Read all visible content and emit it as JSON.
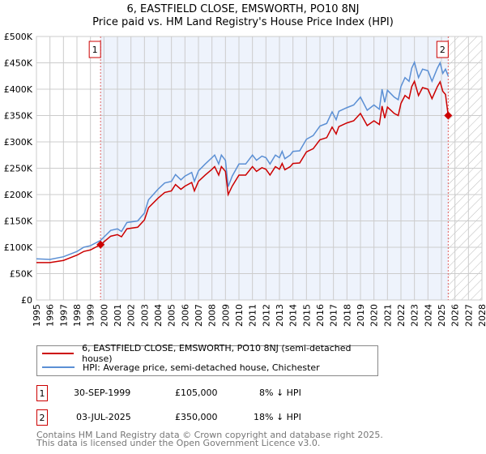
{
  "chart_data": {
    "type": "line",
    "title": "6, EASTFIELD CLOSE, EMSWORTH, PO10 8NJ",
    "subtitle": "Price paid vs. HM Land Registry's House Price Index (HPI)",
    "xlim": [
      1995,
      2028
    ],
    "ylim": [
      0,
      500000
    ],
    "yticks": [
      0,
      50000,
      100000,
      150000,
      200000,
      250000,
      300000,
      350000,
      400000,
      450000,
      500000
    ],
    "ytick_labels": [
      "£0",
      "£50K",
      "£100K",
      "£150K",
      "£200K",
      "£250K",
      "£300K",
      "£350K",
      "£400K",
      "£450K",
      "£500K"
    ],
    "xtick_labels": [
      "1995",
      "1996",
      "1997",
      "1998",
      "1999",
      "2000",
      "2001",
      "2002",
      "2003",
      "2004",
      "2005",
      "2006",
      "2007",
      "2008",
      "2009",
      "2010",
      "2011",
      "2012",
      "2013",
      "2014",
      "2015",
      "2016",
      "2017",
      "2018",
      "2019",
      "2020",
      "2021",
      "2022",
      "2023",
      "2024",
      "2025",
      "2026",
      "2027",
      "2028"
    ],
    "grid": true,
    "colors": {
      "property": "#cc0000",
      "hpi": "#5b8fd4",
      "shade": "#eef3fc"
    },
    "x": [
      1995,
      1996,
      1997,
      1998,
      1998.5,
      1999,
      1999.75,
      2000.5,
      2001,
      2001.3,
      2001.7,
      2002.5,
      2003,
      2003.3,
      2004,
      2004.5,
      2005,
      2005.3,
      2005.7,
      2006,
      2006.5,
      2006.7,
      2007,
      2007.5,
      2008,
      2008.2,
      2008.5,
      2008.7,
      2009,
      2009.2,
      2009.5,
      2010,
      2010.5,
      2011,
      2011.3,
      2011.7,
      2012,
      2012.3,
      2012.7,
      2013,
      2013.2,
      2013.4,
      2013.8,
      2014,
      2014.5,
      2015,
      2015.5,
      2016,
      2016.5,
      2016.9,
      2017.2,
      2017.4,
      2018,
      2018.5,
      2019,
      2019.5,
      2020,
      2020.4,
      2020.6,
      2020.8,
      2021,
      2021.5,
      2021.8,
      2022,
      2022.3,
      2022.6,
      2022.8,
      2023,
      2023.3,
      2023.6,
      2024,
      2024.3,
      2024.7,
      2024.9,
      2025.1,
      2025.3,
      2025.5
    ],
    "series": [
      {
        "name": "6, EASTFIELD CLOSE, EMSWORTH, PO10 8NJ (semi-detached house)",
        "values": [
          71000,
          71000,
          75000,
          85000,
          92000,
          95000,
          105000,
          121000,
          124000,
          120000,
          135000,
          138000,
          152000,
          175000,
          193000,
          204000,
          207000,
          219000,
          210000,
          216000,
          223000,
          207000,
          225000,
          237000,
          248000,
          253000,
          237000,
          253000,
          244000,
          200000,
          216000,
          237000,
          237000,
          253000,
          244000,
          251000,
          248000,
          237000,
          253000,
          248000,
          259000,
          247000,
          253000,
          259000,
          260000,
          281000,
          287000,
          304000,
          308000,
          328000,
          315000,
          329000,
          336000,
          340000,
          354000,
          331000,
          340000,
          333000,
          368000,
          345000,
          366000,
          354000,
          350000,
          373000,
          388000,
          382000,
          405000,
          415000,
          388000,
          403000,
          400000,
          382000,
          405000,
          414000,
          396000,
          390000,
          350000
        ]
      },
      {
        "name": "HPI: Average price, semi-detached house, Chichester",
        "values": [
          78000,
          77000,
          82000,
          92000,
          100000,
          103000,
          113000,
          132000,
          135000,
          130000,
          147000,
          150000,
          165000,
          190000,
          210000,
          222000,
          225000,
          238000,
          228000,
          235000,
          242000,
          225000,
          245000,
          258000,
          270000,
          275000,
          258000,
          275000,
          265000,
          215000,
          235000,
          258000,
          258000,
          275000,
          265000,
          273000,
          270000,
          258000,
          275000,
          270000,
          282000,
          268000,
          275000,
          282000,
          283000,
          305000,
          312000,
          330000,
          335000,
          357000,
          342000,
          358000,
          365000,
          370000,
          385000,
          360000,
          370000,
          362000,
          400000,
          375000,
          398000,
          385000,
          380000,
          405000,
          422000,
          415000,
          440000,
          451000,
          422000,
          438000,
          435000,
          415000,
          440000,
          450000,
          430000,
          438000,
          425000
        ]
      }
    ],
    "sales": [
      {
        "label": "1",
        "x": 1999.75,
        "price": 105000
      },
      {
        "label": "2",
        "x": 2025.5,
        "price": 350000
      }
    ]
  },
  "legend": {
    "property": "6, EASTFIELD CLOSE, EMSWORTH, PO10 8NJ (semi-detached house)",
    "hpi": "HPI: Average price, semi-detached house, Chichester"
  },
  "transactions": [
    {
      "num": "1",
      "date": "30-SEP-1999",
      "price": "£105,000",
      "delta": "8% ↓ HPI"
    },
    {
      "num": "2",
      "date": "03-JUL-2025",
      "price": "£350,000",
      "delta": "18% ↓ HPI"
    }
  ],
  "footer": {
    "line1": "Contains HM Land Registry data © Crown copyright and database right 2025.",
    "line2": "This data is licensed under the Open Government Licence v3.0."
  }
}
